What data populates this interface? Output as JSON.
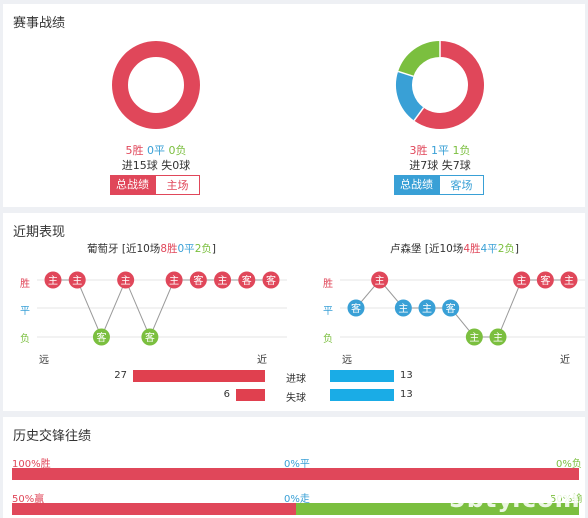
{
  "section1": {
    "title": "赛事战绩",
    "left": {
      "win": "5胜",
      "draw": "0平",
      "loss": "0负",
      "goals": "进15球 失0球",
      "btn_active": "总战绩",
      "btn_other": "主场",
      "slices": [
        {
          "v": 5,
          "color": "#e0475a"
        },
        {
          "v": 0,
          "color": "#39a0d6"
        },
        {
          "v": 0,
          "color": "#7bbf3f"
        }
      ]
    },
    "right": {
      "win": "3胜",
      "draw": "1平",
      "loss": "1负",
      "goals": "进7球 失7球",
      "btn_active": "总战绩",
      "btn_other": "客场",
      "slices": [
        {
          "v": 3,
          "color": "#e0475a"
        },
        {
          "v": 1,
          "color": "#39a0d6"
        },
        {
          "v": 1,
          "color": "#7bbf3f"
        }
      ]
    }
  },
  "section2": {
    "title": "近期表现",
    "rows": {
      "win": "胜",
      "draw": "平",
      "loss": "负"
    },
    "axis": {
      "far": "远",
      "near": "近"
    },
    "left": {
      "name": "葡萄牙",
      "pre": "[近10场",
      "w": "8胜",
      "d": "0平",
      "l": "2负",
      "post": "]",
      "results": [
        {
          "r": "W",
          "v": "主"
        },
        {
          "r": "W",
          "v": "主"
        },
        {
          "r": "L",
          "v": "客"
        },
        {
          "r": "W",
          "v": "主"
        },
        {
          "r": "L",
          "v": "客"
        },
        {
          "r": "W",
          "v": "主"
        },
        {
          "r": "W",
          "v": "客"
        },
        {
          "r": "W",
          "v": "主"
        },
        {
          "r": "W",
          "v": "客"
        },
        {
          "r": "W",
          "v": "客"
        }
      ]
    },
    "right": {
      "name": "卢森堡",
      "pre": "[近10场",
      "w": "4胜",
      "d": "4平",
      "l": "2负",
      "post": "]",
      "results": [
        {
          "r": "D",
          "v": "客"
        },
        {
          "r": "W",
          "v": "主"
        },
        {
          "r": "D",
          "v": "主"
        },
        {
          "r": "D",
          "v": "主"
        },
        {
          "r": "D",
          "v": "客"
        },
        {
          "r": "L",
          "v": "主"
        },
        {
          "r": "L",
          "v": "主"
        },
        {
          "r": "W",
          "v": "主"
        },
        {
          "r": "W",
          "v": "客"
        },
        {
          "r": "W",
          "v": "主"
        }
      ]
    },
    "stats": [
      {
        "label": "进球",
        "left": 27,
        "right": 13
      },
      {
        "label": "失球",
        "left": 6,
        "right": 13
      }
    ],
    "colors": {
      "win": "#e0475a",
      "draw": "#39a0d6",
      "loss": "#7bbf3f",
      "bar_left": "#e0404f",
      "bar_right": "#1aace6"
    }
  },
  "section3": {
    "title": "历史交锋往绩",
    "row1": {
      "left": "100%胜",
      "mid": "0%平",
      "right": "0%负",
      "red_pct": 100
    },
    "row2": {
      "left": "50%赢",
      "mid": "0%走",
      "right": "50%输",
      "red_pct": 50
    }
  },
  "watermark": "5bty.com"
}
